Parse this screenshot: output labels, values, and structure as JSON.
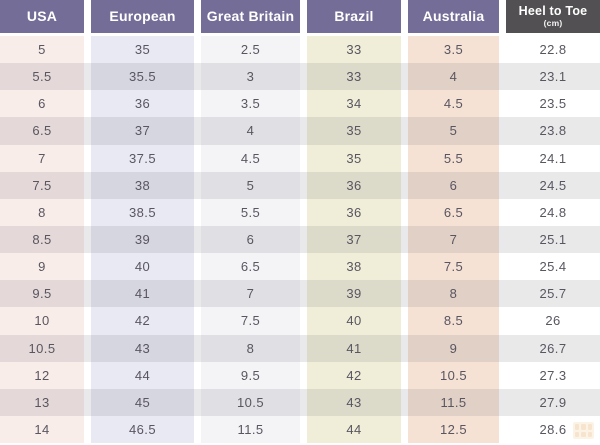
{
  "colors": {
    "header_purple": "#746d98",
    "header_dark": "#525052",
    "cell_text": "#595660",
    "even_row_stripe": "#e9e9eb",
    "watermark_orange": "#e8a95f"
  },
  "table": {
    "columns": [
      {
        "label": "USA",
        "header_bg": "#746d98",
        "tint": "#f9edea"
      },
      {
        "label": "European",
        "header_bg": "#746d98",
        "tint": "#e9e9f4"
      },
      {
        "label": "Great Britain",
        "header_bg": "#746d98",
        "tint": "#f4f4f7"
      },
      {
        "label": "Brazil",
        "header_bg": "#746d98",
        "tint": "#f0eed9"
      },
      {
        "label": "Australia",
        "header_bg": "#746d98",
        "tint": "#f5e2d5"
      },
      {
        "label": "Heel to Toe",
        "sublabel": "(cm)",
        "header_bg": "#525052",
        "tint": "#ffffff"
      }
    ],
    "rows": [
      [
        "5",
        "35",
        "2.5",
        "33",
        "3.5",
        "22.8"
      ],
      [
        "5.5",
        "35.5",
        "3",
        "33",
        "4",
        "23.1"
      ],
      [
        "6",
        "36",
        "3.5",
        "34",
        "4.5",
        "23.5"
      ],
      [
        "6.5",
        "37",
        "4",
        "35",
        "5",
        "23.8"
      ],
      [
        "7",
        "37.5",
        "4.5",
        "35",
        "5.5",
        "24.1"
      ],
      [
        "7.5",
        "38",
        "5",
        "36",
        "6",
        "24.5"
      ],
      [
        "8",
        "38.5",
        "5.5",
        "36",
        "6.5",
        "24.8"
      ],
      [
        "8.5",
        "39",
        "6",
        "37",
        "7",
        "25.1"
      ],
      [
        "9",
        "40",
        "6.5",
        "38",
        "7.5",
        "25.4"
      ],
      [
        "9.5",
        "41",
        "7",
        "39",
        "8",
        "25.7"
      ],
      [
        "10",
        "42",
        "7.5",
        "40",
        "8.5",
        "26"
      ],
      [
        "10.5",
        "43",
        "8",
        "41",
        "9",
        "26.7"
      ],
      [
        "12",
        "44",
        "9.5",
        "42",
        "10.5",
        "27.3"
      ],
      [
        "13",
        "45",
        "10.5",
        "43",
        "11.5",
        "27.9"
      ],
      [
        "14",
        "46.5",
        "11.5",
        "44",
        "12.5",
        "28.6"
      ]
    ]
  },
  "chart_data": {
    "type": "table",
    "title": "",
    "columns": [
      "USA",
      "European",
      "Great Britain",
      "Brazil",
      "Australia",
      "Heel to Toe (cm)"
    ],
    "rows": [
      [
        "5",
        "35",
        "2.5",
        "33",
        "3.5",
        "22.8"
      ],
      [
        "5.5",
        "35.5",
        "3",
        "33",
        "4",
        "23.1"
      ],
      [
        "6",
        "36",
        "3.5",
        "34",
        "4.5",
        "23.5"
      ],
      [
        "6.5",
        "37",
        "4",
        "35",
        "5",
        "23.8"
      ],
      [
        "7",
        "37.5",
        "4.5",
        "35",
        "5.5",
        "24.1"
      ],
      [
        "7.5",
        "38",
        "5",
        "36",
        "6",
        "24.5"
      ],
      [
        "8",
        "38.5",
        "5.5",
        "36",
        "6.5",
        "24.8"
      ],
      [
        "8.5",
        "39",
        "6",
        "37",
        "7",
        "25.1"
      ],
      [
        "9",
        "40",
        "6.5",
        "38",
        "7.5",
        "25.4"
      ],
      [
        "9.5",
        "41",
        "7",
        "39",
        "8",
        "25.7"
      ],
      [
        "10",
        "42",
        "7.5",
        "40",
        "8.5",
        "26"
      ],
      [
        "10.5",
        "43",
        "8",
        "41",
        "9",
        "26.7"
      ],
      [
        "12",
        "44",
        "9.5",
        "42",
        "10.5",
        "27.3"
      ],
      [
        "13",
        "45",
        "10.5",
        "43",
        "11.5",
        "27.9"
      ],
      [
        "14",
        "46.5",
        "11.5",
        "44",
        "12.5",
        "28.6"
      ]
    ],
    "legend_position": "none",
    "grid": false
  },
  "watermark": {
    "icon": "logo-grid-icon"
  }
}
